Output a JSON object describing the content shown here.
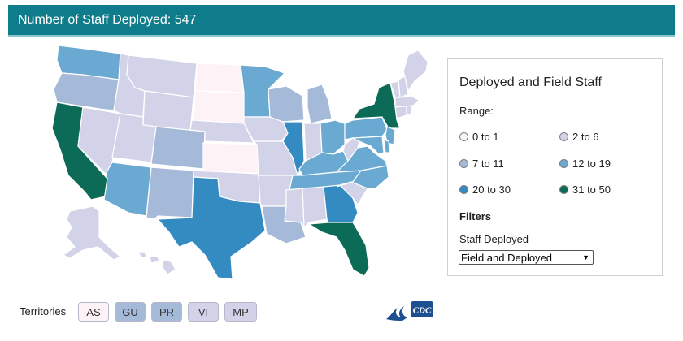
{
  "header": {
    "title": "Number of Staff Deployed: 547"
  },
  "colors": {
    "header_bg": "#0e7c8a",
    "range_0_1": "#fdf2f5",
    "range_2_6": "#d2d3e8",
    "range_7_11": "#a5b9d8",
    "range_12_19": "#69a9d2",
    "range_20_30": "#338bc2",
    "range_31_50": "#0b6b57"
  },
  "legend": {
    "title": "Deployed and Field Staff",
    "range_label": "Range:",
    "ranges": [
      {
        "label": "0 to 1",
        "color": "#fdf2f5"
      },
      {
        "label": "2 to 6",
        "color": "#d2d3e8"
      },
      {
        "label": "7 to 11",
        "color": "#a5b9d8"
      },
      {
        "label": "12 to 19",
        "color": "#69a9d2"
      },
      {
        "label": "20 to 30",
        "color": "#338bc2"
      },
      {
        "label": "31 to 50",
        "color": "#0b6b57"
      }
    ],
    "filters_label": "Filters",
    "staff_label": "Staff Deployed",
    "staff_selected": "Field and Deployed"
  },
  "territories": {
    "label": "Territories",
    "items": [
      {
        "label": "AS",
        "color": "#fdf2f5"
      },
      {
        "label": "GU",
        "color": "#a5b9d8"
      },
      {
        "label": "PR",
        "color": "#a5b9d8"
      },
      {
        "label": "VI",
        "color": "#d2d3e8"
      },
      {
        "label": "MP",
        "color": "#d2d3e8"
      }
    ]
  },
  "map": {
    "states": [
      {
        "name": "WA",
        "range": "12 to 19"
      },
      {
        "name": "OR",
        "range": "7 to 11"
      },
      {
        "name": "CA",
        "range": "31 to 50"
      },
      {
        "name": "NV",
        "range": "2 to 6"
      },
      {
        "name": "ID",
        "range": "2 to 6"
      },
      {
        "name": "MT",
        "range": "2 to 6"
      },
      {
        "name": "WY",
        "range": "2 to 6"
      },
      {
        "name": "UT",
        "range": "2 to 6"
      },
      {
        "name": "AZ",
        "range": "12 to 19"
      },
      {
        "name": "CO",
        "range": "7 to 11"
      },
      {
        "name": "NM",
        "range": "7 to 11"
      },
      {
        "name": "ND",
        "range": "0 to 1"
      },
      {
        "name": "SD",
        "range": "0 to 1"
      },
      {
        "name": "NE",
        "range": "2 to 6"
      },
      {
        "name": "KS",
        "range": "0 to 1"
      },
      {
        "name": "OK",
        "range": "2 to 6"
      },
      {
        "name": "TX",
        "range": "20 to 30"
      },
      {
        "name": "MN",
        "range": "12 to 19"
      },
      {
        "name": "IA",
        "range": "2 to 6"
      },
      {
        "name": "MO",
        "range": "2 to 6"
      },
      {
        "name": "AR",
        "range": "2 to 6"
      },
      {
        "name": "LA",
        "range": "7 to 11"
      },
      {
        "name": "WI",
        "range": "7 to 11"
      },
      {
        "name": "IL",
        "range": "20 to 30"
      },
      {
        "name": "MI",
        "range": "7 to 11"
      },
      {
        "name": "IN",
        "range": "2 to 6"
      },
      {
        "name": "OH",
        "range": "12 to 19"
      },
      {
        "name": "KY",
        "range": "12 to 19"
      },
      {
        "name": "TN",
        "range": "12 to 19"
      },
      {
        "name": "MS",
        "range": "2 to 6"
      },
      {
        "name": "AL",
        "range": "2 to 6"
      },
      {
        "name": "GA",
        "range": "20 to 30"
      },
      {
        "name": "FL",
        "range": "31 to 50"
      },
      {
        "name": "SC",
        "range": "2 to 6"
      },
      {
        "name": "NC",
        "range": "12 to 19"
      },
      {
        "name": "VA",
        "range": "12 to 19"
      },
      {
        "name": "WV",
        "range": "2 to 6"
      },
      {
        "name": "PA",
        "range": "12 to 19"
      },
      {
        "name": "NY",
        "range": "31 to 50"
      },
      {
        "name": "NJ",
        "range": "12 to 19"
      },
      {
        "name": "DE",
        "range": "12 to 19"
      },
      {
        "name": "MD",
        "range": "12 to 19"
      },
      {
        "name": "CT",
        "range": "2 to 6"
      },
      {
        "name": "RI",
        "range": "2 to 6"
      },
      {
        "name": "MA",
        "range": "2 to 6"
      },
      {
        "name": "VT",
        "range": "2 to 6"
      },
      {
        "name": "NH",
        "range": "2 to 6"
      },
      {
        "name": "ME",
        "range": "2 to 6"
      },
      {
        "name": "AK",
        "range": "2 to 6"
      },
      {
        "name": "HI",
        "range": "2 to 6"
      }
    ]
  }
}
